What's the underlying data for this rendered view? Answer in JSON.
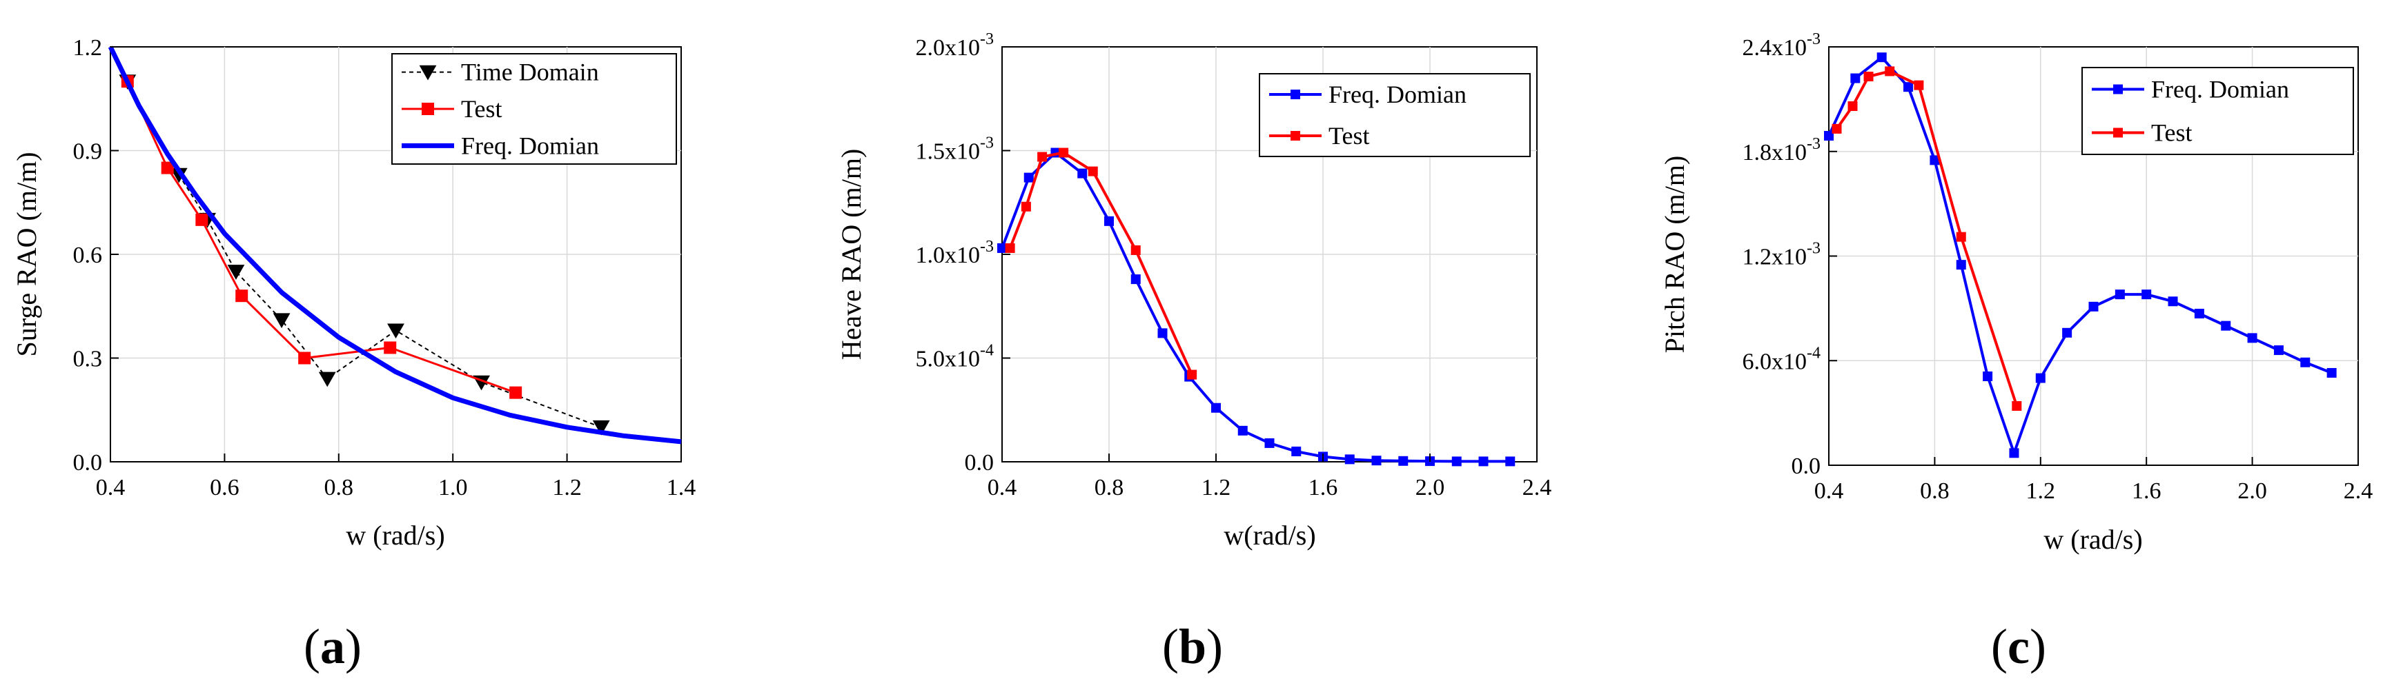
{
  "chart_data": [
    {
      "panel_label": "a",
      "type": "line",
      "xlabel": "w (rad/s)",
      "ylabel": "Surge RAO (m/m)",
      "xlim": [
        0.4,
        1.4
      ],
      "ylim": [
        0.0,
        1.2
      ],
      "xticks": [
        0.4,
        0.6,
        0.8,
        1.0,
        1.2,
        1.4
      ],
      "xtick_labels": [
        "0.4",
        "0.6",
        "0.8",
        "1.0",
        "1.2",
        "1.4"
      ],
      "yticks": [
        0.0,
        0.3,
        0.6,
        0.9,
        1.2
      ],
      "ytick_labels": [
        "0.0",
        "0.3",
        "0.6",
        "0.9",
        "1.2"
      ],
      "grid": true,
      "legend_position": "top-right",
      "series": [
        {
          "name": "Time Domain",
          "color": "#000000",
          "line": "dashed",
          "marker": "triangle-down",
          "x": [
            0.43,
            0.52,
            0.57,
            0.62,
            0.7,
            0.78,
            0.9,
            1.05,
            1.26
          ],
          "y": [
            1.1,
            0.83,
            0.7,
            0.55,
            0.41,
            0.24,
            0.38,
            0.23,
            0.1
          ]
        },
        {
          "name": "Test",
          "color": "#ff0000",
          "line": "solid",
          "marker": "square",
          "x": [
            0.43,
            0.5,
            0.56,
            0.63,
            0.74,
            0.89,
            1.11
          ],
          "y": [
            1.1,
            0.85,
            0.7,
            0.48,
            0.3,
            0.33,
            0.2
          ]
        },
        {
          "name": "Freq. Domian",
          "color": "#0000ff",
          "line": "thick",
          "marker": "none",
          "x": [
            0.4,
            0.45,
            0.5,
            0.55,
            0.6,
            0.7,
            0.8,
            0.9,
            1.0,
            1.1,
            1.2,
            1.3,
            1.4
          ],
          "y": [
            1.2,
            1.03,
            0.89,
            0.77,
            0.66,
            0.49,
            0.36,
            0.26,
            0.185,
            0.135,
            0.1,
            0.075,
            0.058
          ]
        }
      ]
    },
    {
      "panel_label": "b",
      "type": "line",
      "xlabel": "w(rad/s)",
      "ylabel": "Heave RAO (m/m)",
      "xlim": [
        0.4,
        2.4
      ],
      "ylim": [
        0.0,
        0.002
      ],
      "xticks": [
        0.4,
        0.8,
        1.2,
        1.6,
        2.0,
        2.4
      ],
      "xtick_labels": [
        "0.4",
        "0.8",
        "1.2",
        "1.6",
        "2.0",
        "2.4"
      ],
      "yticks": [
        0.0,
        0.0005,
        0.001,
        0.0015,
        0.002
      ],
      "ytick_labels": [
        {
          "mantissa": "0.0",
          "exponent": ""
        },
        {
          "mantissa": "5.0x10",
          "exponent": "-4"
        },
        {
          "mantissa": "1.0x10",
          "exponent": "-3"
        },
        {
          "mantissa": "1.5x10",
          "exponent": "-3"
        },
        {
          "mantissa": "2.0x10",
          "exponent": "-3"
        }
      ],
      "grid": true,
      "legend_position": "top-right",
      "series": [
        {
          "name": "Freq. Domian",
          "color": "#0000ff",
          "line": "solid",
          "marker": "square",
          "x": [
            0.4,
            0.5,
            0.6,
            0.7,
            0.8,
            0.9,
            1.0,
            1.1,
            1.2,
            1.3,
            1.4,
            1.5,
            1.6,
            1.7,
            1.8,
            1.9,
            2.0,
            2.1,
            2.2,
            2.3
          ],
          "y": [
            0.00103,
            0.00137,
            0.00149,
            0.00139,
            0.00116,
            0.00088,
            0.00062,
            0.00041,
            0.00026,
            0.00015,
            9e-05,
            5e-05,
            2.5e-05,
            1.2e-05,
            6e-06,
            4e-06,
            3e-06,
            2e-06,
            2e-06,
            2e-06
          ]
        },
        {
          "name": "Test",
          "color": "#ff0000",
          "line": "solid",
          "marker": "square",
          "x": [
            0.43,
            0.49,
            0.55,
            0.63,
            0.74,
            0.9,
            1.11
          ],
          "y": [
            0.00103,
            0.00123,
            0.00147,
            0.00149,
            0.0014,
            0.00102,
            0.00042
          ]
        }
      ]
    },
    {
      "panel_label": "c",
      "type": "line",
      "xlabel": "w (rad/s)",
      "ylabel": "Pitch RAO (m/m)",
      "xlim": [
        0.4,
        2.4
      ],
      "ylim": [
        0.0,
        0.0024
      ],
      "xticks": [
        0.4,
        0.8,
        1.2,
        1.6,
        2.0,
        2.4
      ],
      "xtick_labels": [
        "0.4",
        "0.8",
        "1.2",
        "1.6",
        "2.0",
        "2.4"
      ],
      "yticks": [
        0.0,
        0.0006,
        0.0012,
        0.0018,
        0.0024
      ],
      "ytick_labels": [
        {
          "mantissa": "0.0",
          "exponent": ""
        },
        {
          "mantissa": "6.0x10",
          "exponent": "-4"
        },
        {
          "mantissa": "1.2x10",
          "exponent": "-3"
        },
        {
          "mantissa": "1.8x10",
          "exponent": "-3"
        },
        {
          "mantissa": "2.4x10",
          "exponent": "-3"
        }
      ],
      "grid": true,
      "legend_position": "top-right",
      "series": [
        {
          "name": "Freq. Domian",
          "color": "#0000ff",
          "line": "solid",
          "marker": "square",
          "x": [
            0.4,
            0.5,
            0.6,
            0.7,
            0.8,
            0.9,
            1.0,
            1.1,
            1.2,
            1.3,
            1.4,
            1.5,
            1.6,
            1.7,
            1.8,
            1.9,
            2.0,
            2.1,
            2.2,
            2.3
          ],
          "y": [
            0.00189,
            0.00222,
            0.00234,
            0.00217,
            0.00175,
            0.00115,
            0.00051,
            7e-05,
            0.0005,
            0.00076,
            0.00091,
            0.00098,
            0.00098,
            0.00094,
            0.00087,
            0.0008,
            0.00073,
            0.00066,
            0.00059,
            0.00053
          ]
        },
        {
          "name": "Test",
          "color": "#ff0000",
          "line": "solid",
          "marker": "square",
          "x": [
            0.43,
            0.49,
            0.55,
            0.63,
            0.74,
            0.9,
            1.11
          ],
          "y": [
            0.00193,
            0.00206,
            0.00223,
            0.00226,
            0.00218,
            0.00131,
            0.00034
          ]
        }
      ]
    }
  ]
}
